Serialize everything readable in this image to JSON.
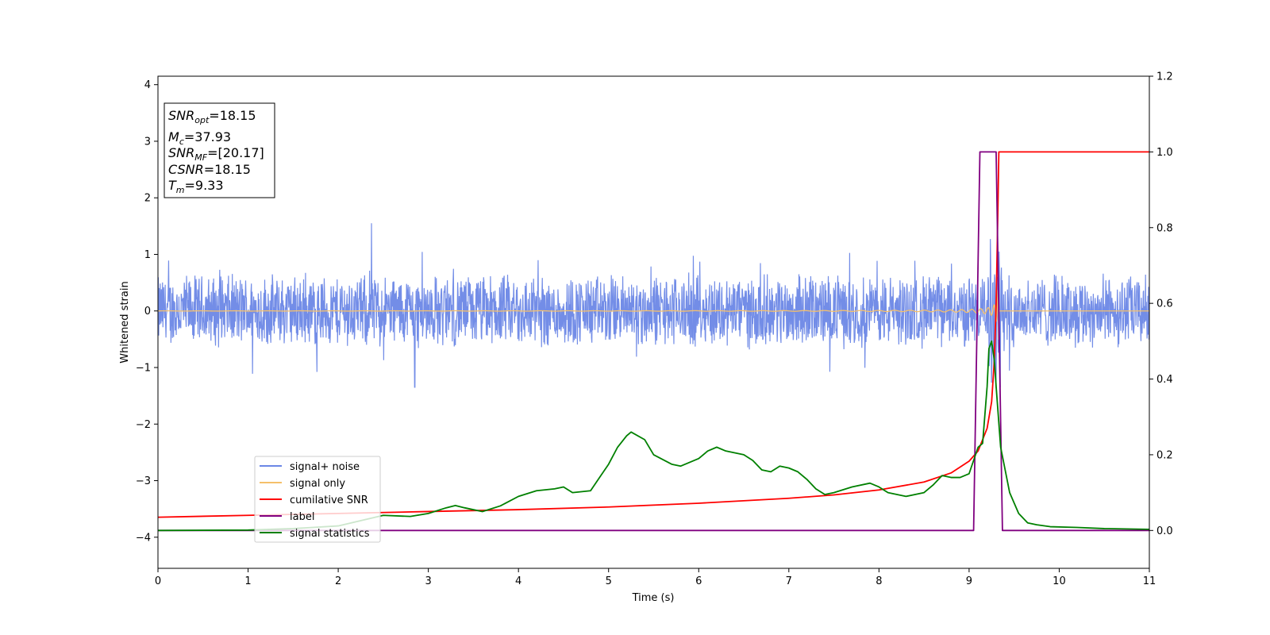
{
  "chart_data": {
    "type": "line",
    "xlabel": "Time (s)",
    "ylabel": "Whitened strain",
    "xlim": [
      0,
      11
    ],
    "ylim_left": [
      -4.55,
      4.15
    ],
    "ylim_right": [
      -0.1,
      1.2
    ],
    "x_ticks": [
      "0",
      "1",
      "2",
      "3",
      "4",
      "5",
      "6",
      "7",
      "8",
      "9",
      "10",
      "11"
    ],
    "y_ticks_left": [
      {
        "value": 4,
        "label": "4"
      },
      {
        "value": 3,
        "label": "3"
      },
      {
        "value": 2,
        "label": "2"
      },
      {
        "value": 1,
        "label": "1"
      },
      {
        "value": 0,
        "label": "0"
      },
      {
        "value": -1,
        "label": "−1"
      },
      {
        "value": -2,
        "label": "−2"
      },
      {
        "value": -3,
        "label": "−3"
      },
      {
        "value": -4,
        "label": "−4"
      }
    ],
    "y_ticks_right": [
      {
        "value": 1.2,
        "label": "1.2"
      },
      {
        "value": 1.0,
        "label": "1.0"
      },
      {
        "value": 0.8,
        "label": "0.8"
      },
      {
        "value": 0.6,
        "label": "0.6"
      },
      {
        "value": 0.4,
        "label": "0.4"
      },
      {
        "value": 0.2,
        "label": "0.2"
      },
      {
        "value": 0.0,
        "label": "0.0"
      }
    ],
    "grid": false,
    "legend_position": "lower-left",
    "series": [
      {
        "name": "signal+ noise",
        "color": "#6b87e6",
        "axis": "left",
        "description": "whitened noise, roughly ±0.7 with spikes up to ±1.5",
        "amplitude": 0.7,
        "peaks": [
          1.55,
          -1.35
        ]
      },
      {
        "name": "signal only",
        "color": "#f5c06b",
        "axis": "left",
        "description": "chirp signal ending near t=9.33",
        "merger_time": 9.33,
        "peak_amplitude": 1.3
      },
      {
        "name": "cumilative SNR",
        "color": "#ff0000",
        "axis": "right",
        "x": [
          0,
          1,
          2,
          3,
          4,
          5,
          6,
          7,
          7.5,
          8,
          8.5,
          8.8,
          9.0,
          9.1,
          9.2,
          9.25,
          9.28,
          9.3,
          9.32,
          9.33,
          11
        ],
        "y": [
          0.035,
          0.04,
          0.045,
          0.05,
          0.055,
          0.062,
          0.072,
          0.085,
          0.094,
          0.107,
          0.128,
          0.152,
          0.183,
          0.21,
          0.27,
          0.34,
          0.45,
          0.6,
          0.85,
          1.0,
          1.0
        ]
      },
      {
        "name": "label",
        "color": "#800080",
        "axis": "right",
        "x": [
          0,
          9.05,
          9.12,
          9.3,
          9.37,
          11
        ],
        "y": [
          0,
          0,
          1,
          1,
          0,
          0
        ]
      },
      {
        "name": "signal statistics",
        "color": "#008000",
        "axis": "right",
        "x": [
          0,
          1.0,
          1.5,
          2.0,
          2.5,
          2.8,
          3.0,
          3.2,
          3.3,
          3.4,
          3.6,
          3.8,
          4.0,
          4.2,
          4.4,
          4.5,
          4.6,
          4.8,
          4.9,
          5.0,
          5.1,
          5.2,
          5.25,
          5.4,
          5.5,
          5.7,
          5.8,
          5.9,
          6.0,
          6.1,
          6.2,
          6.3,
          6.5,
          6.6,
          6.7,
          6.8,
          6.9,
          7.0,
          7.1,
          7.2,
          7.3,
          7.4,
          7.5,
          7.7,
          7.9,
          8.0,
          8.1,
          8.3,
          8.5,
          8.6,
          8.7,
          8.8,
          8.9,
          9.0,
          9.1,
          9.15,
          9.2,
          9.22,
          9.25,
          9.28,
          9.3,
          9.35,
          9.45,
          9.55,
          9.65,
          9.75,
          9.9,
          10.2,
          10.5,
          11.0
        ],
        "y": [
          0.0,
          0.001,
          0.005,
          0.012,
          0.04,
          0.037,
          0.045,
          0.06,
          0.066,
          0.06,
          0.05,
          0.065,
          0.09,
          0.105,
          0.11,
          0.115,
          0.1,
          0.105,
          0.14,
          0.175,
          0.22,
          0.25,
          0.26,
          0.24,
          0.2,
          0.175,
          0.17,
          0.18,
          0.19,
          0.21,
          0.22,
          0.21,
          0.2,
          0.185,
          0.16,
          0.155,
          0.17,
          0.165,
          0.155,
          0.135,
          0.11,
          0.095,
          0.1,
          0.115,
          0.125,
          0.115,
          0.1,
          0.09,
          0.1,
          0.12,
          0.145,
          0.14,
          0.14,
          0.15,
          0.22,
          0.23,
          0.38,
          0.48,
          0.5,
          0.45,
          0.38,
          0.22,
          0.1,
          0.045,
          0.02,
          0.015,
          0.01,
          0.008,
          0.005,
          0.003
        ]
      }
    ],
    "annotation_box": {
      "snr_opt": "=18.15",
      "mc": "=37.93",
      "snr_mf": "=[20.17]",
      "csnr": "=18.15",
      "tm": "=9.33"
    }
  }
}
